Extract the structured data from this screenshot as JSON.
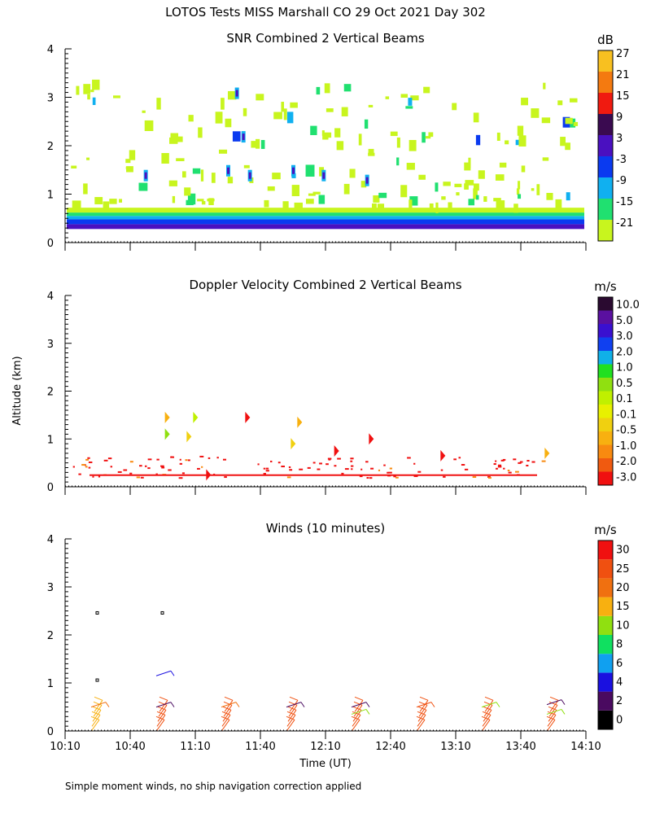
{
  "title": "LOTOS Tests MISS Marshall CO  29 Oct 2021 Day 302",
  "footnote": "Simple moment winds, no ship navigation correction applied",
  "ylabel": "Altitude (km)",
  "xlabel": "Time (UT)",
  "x_ticks": [
    "10:10",
    "10:40",
    "11:10",
    "11:40",
    "12:10",
    "12:40",
    "13:10",
    "13:40",
    "14:10"
  ],
  "y_ticks": [
    "0",
    "1",
    "2",
    "3",
    "4"
  ],
  "colors": {
    "snr": [
      "#c8f51e",
      "#20e070",
      "#10b0f0",
      "#0a3af0",
      "#4a10c0",
      "#3a0a50",
      "#f01a10",
      "#f47a10",
      "#f8c020"
    ],
    "doppler": [
      "#f01010",
      "#f05a10",
      "#f88a10",
      "#f8b010",
      "#f0d010",
      "#e8f000",
      "#c0f000",
      "#90e010",
      "#20e020",
      "#10b0e8",
      "#1040f0",
      "#3a10d0",
      "#5a10a0",
      "#2a0a30"
    ],
    "winds": [
      "#000000",
      "#4a0a60",
      "#1a10e0",
      "#10a0f0",
      "#10e060",
      "#90e010",
      "#f8b010",
      "#f07010",
      "#f05010",
      "#f01010"
    ]
  },
  "chart_data": [
    {
      "type": "heatmap",
      "title": "SNR Combined 2 Vertical Beams",
      "unit": "dB",
      "xlabel": "",
      "ylabel": "",
      "ylim": [
        0,
        4
      ],
      "xlim": [
        "10:10",
        "14:10"
      ],
      "colorbar_labels": [
        "-21",
        "-15",
        "-9",
        "-3",
        "3",
        "9",
        "15",
        "21",
        "27"
      ],
      "colorbar_values": [
        -21,
        -15,
        -9,
        -3,
        3,
        9,
        15,
        21,
        27
      ],
      "layers": [
        {
          "alt_range_km": [
            0.28,
            0.38
          ],
          "snr_db": 3
        },
        {
          "alt_range_km": [
            0.38,
            0.48
          ],
          "snr_db": -3
        },
        {
          "alt_range_km": [
            0.48,
            0.55
          ],
          "snr_db": -9
        },
        {
          "alt_range_km": [
            0.55,
            0.62
          ],
          "snr_db": -15
        },
        {
          "alt_range_km": [
            0.62,
            0.72
          ],
          "snr_db": -21
        }
      ]
    },
    {
      "type": "heatmap",
      "title": "Doppler Velocity Combined 2 Vertical Beams",
      "unit": "m/s",
      "ylabel": "Altitude (km)",
      "ylim": [
        0,
        4
      ],
      "xlim": [
        "10:10",
        "14:10"
      ],
      "colorbar_labels": [
        "-3.0",
        "-2.0",
        "-1.0",
        "-0.5",
        "-0.1",
        "0.1",
        "0.5",
        "1.0",
        "2.0",
        "3.0",
        "5.0",
        "10.0"
      ],
      "colorbar_values": [
        -3.0,
        -2.0,
        -1.0,
        -0.5,
        -0.1,
        0.1,
        0.5,
        1.0,
        2.0,
        3.0,
        5.0,
        10.0
      ],
      "patches": [
        {
          "time": "10:56",
          "alt_km": 1.45,
          "v": -0.5
        },
        {
          "time": "10:56",
          "alt_km": 1.1,
          "v": 1.0
        },
        {
          "time": "11:06",
          "alt_km": 1.05,
          "v": -0.1
        },
        {
          "time": "11:09",
          "alt_km": 1.45,
          "v": 0.5
        },
        {
          "time": "11:15",
          "alt_km": 0.25,
          "v": -3.0
        },
        {
          "time": "11:33",
          "alt_km": 1.45,
          "v": -3.0
        },
        {
          "time": "11:54",
          "alt_km": 0.9,
          "v": -0.1
        },
        {
          "time": "11:57",
          "alt_km": 1.35,
          "v": -0.5
        },
        {
          "time": "12:14",
          "alt_km": 0.75,
          "v": -3.0
        },
        {
          "time": "12:30",
          "alt_km": 1.0,
          "v": -3.0
        },
        {
          "time": "13:03",
          "alt_km": 0.65,
          "v": -3.0
        },
        {
          "time": "13:51",
          "alt_km": 0.7,
          "v": -0.5
        }
      ]
    },
    {
      "type": "wind_barbs",
      "title": "Winds (10 minutes)",
      "unit": "m/s",
      "xlabel": "Time (UT)",
      "ylim": [
        0,
        4
      ],
      "xlim": [
        "10:10",
        "14:10"
      ],
      "colorbar_labels": [
        "0",
        "2",
        "4",
        "6",
        "8",
        "10",
        "15",
        "20",
        "25",
        "30"
      ],
      "colorbar_values": [
        0,
        2,
        4,
        6,
        8,
        10,
        15,
        20,
        25,
        30
      ],
      "profiles": [
        {
          "time": "10:25",
          "levels": [
            {
              "alt_km": 0.3,
              "speed": 15
            },
            {
              "alt_km": 0.6,
              "speed": 20
            },
            {
              "alt_km": 1.05,
              "speed": 0
            },
            {
              "alt_km": 2.45,
              "speed": 0
            }
          ]
        },
        {
          "time": "10:55",
          "levels": [
            {
              "alt_km": 0.3,
              "speed": 25
            },
            {
              "alt_km": 0.6,
              "speed": 2
            },
            {
              "alt_km": 1.25,
              "speed": 4
            },
            {
              "alt_km": 2.45,
              "speed": 0
            }
          ]
        },
        {
          "time": "11:25",
          "levels": [
            {
              "alt_km": 0.3,
              "speed": 25
            },
            {
              "alt_km": 0.6,
              "speed": 20
            }
          ]
        },
        {
          "time": "11:55",
          "levels": [
            {
              "alt_km": 0.3,
              "speed": 25
            },
            {
              "alt_km": 0.6,
              "speed": 2
            }
          ]
        },
        {
          "time": "12:25",
          "levels": [
            {
              "alt_km": 0.3,
              "speed": 25
            },
            {
              "alt_km": 0.6,
              "speed": 2
            },
            {
              "alt_km": 0.45,
              "speed": 10
            }
          ]
        },
        {
          "time": "12:55",
          "levels": [
            {
              "alt_km": 0.3,
              "speed": 25
            },
            {
              "alt_km": 0.6,
              "speed": 25
            }
          ]
        },
        {
          "time": "13:25",
          "levels": [
            {
              "alt_km": 0.3,
              "speed": 25
            },
            {
              "alt_km": 0.6,
              "speed": 10
            }
          ]
        },
        {
          "time": "13:55",
          "levels": [
            {
              "alt_km": 0.3,
              "speed": 25
            },
            {
              "alt_km": 0.45,
              "speed": 10
            },
            {
              "alt_km": 0.65,
              "speed": 2
            }
          ]
        }
      ]
    }
  ]
}
